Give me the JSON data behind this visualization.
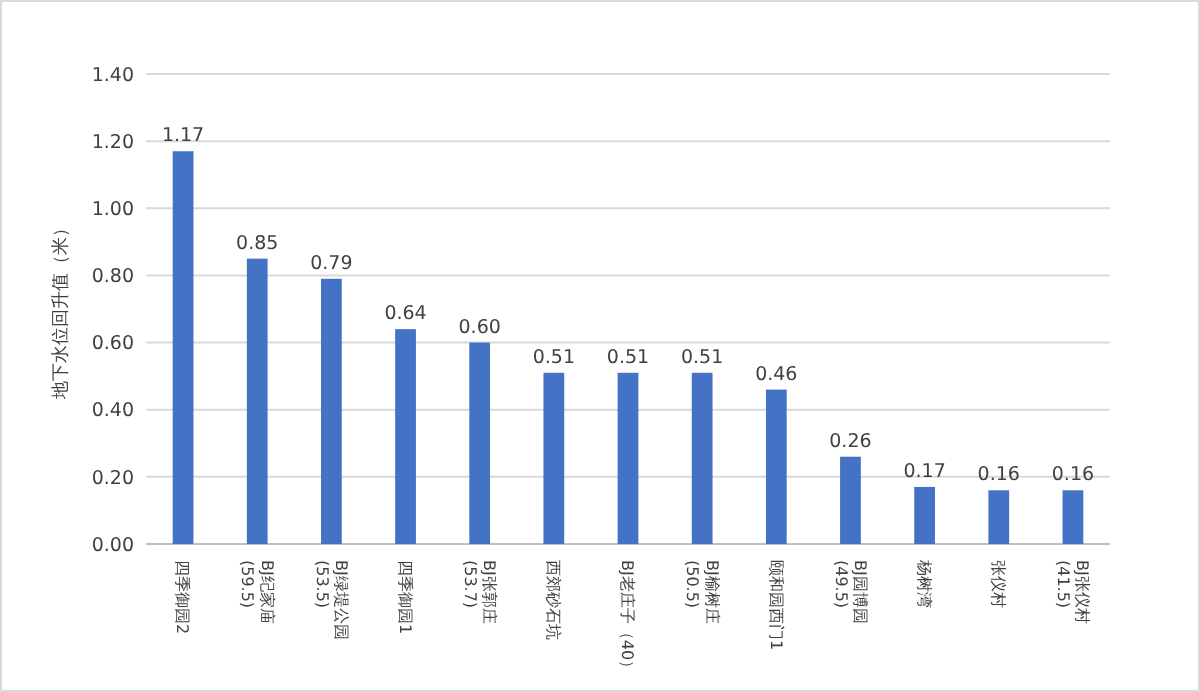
{
  "chart_data": {
    "type": "bar",
    "ylabel": "地下水位回升值（米）",
    "categories": [
      "四季御园2",
      "BJ纪家庙\n(59.5)",
      "BJ绿堤公园\n(53.5)",
      "四季御园1",
      "BJ张郭庄\n(53.7)",
      "西郊砂石坑",
      "BJ老庄子（40）",
      "BJ榆树庄\n(50.5)",
      "颐和园西门1",
      "BJ园博园\n(49.5)",
      "杨树湾",
      "张仪村",
      "BJ张仪村\n(41.5)"
    ],
    "values": [
      1.17,
      0.85,
      0.79,
      0.64,
      0.6,
      0.51,
      0.51,
      0.51,
      0.46,
      0.26,
      0.17,
      0.16,
      0.16
    ],
    "color": "#4472c4",
    "ylim": [
      0,
      1.4
    ],
    "yticks": [
      {
        "value": 0,
        "label": "0.00"
      },
      {
        "value": 0.2,
        "label": "0.20"
      },
      {
        "value": 0.4,
        "label": "0.40"
      },
      {
        "value": 0.6,
        "label": "0.60"
      },
      {
        "value": 0.8,
        "label": "0.80"
      },
      {
        "value": 1.0,
        "label": "1.00"
      },
      {
        "value": 1.2,
        "label": "1.20"
      },
      {
        "value": 1.4,
        "label": "1.40"
      }
    ],
    "value_labels": [
      "1.17",
      "0.85",
      "0.79",
      "0.64",
      "0.60",
      "0.51",
      "0.51",
      "0.51",
      "0.46",
      "0.26",
      "0.17",
      "0.16",
      "0.16"
    ],
    "grid": "y"
  }
}
